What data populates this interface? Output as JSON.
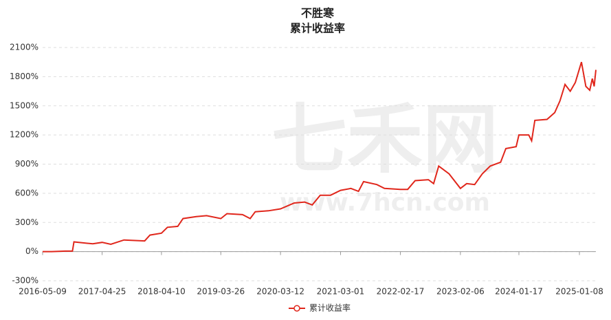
{
  "chart_data": {
    "type": "line",
    "title": "不胜寒",
    "subtitle": "累计收益率",
    "watermark": "七禾网",
    "watermark_url": "www.7hcn.com",
    "x": [
      "2016-05-09",
      "2016-07-01",
      "2016-09-20",
      "2016-11-01",
      "2016-11-10",
      "2017-03-01",
      "2017-04-25",
      "2017-06-15",
      "2017-09-01",
      "2018-01-01",
      "2018-02-01",
      "2018-04-10",
      "2018-05-15",
      "2018-07-15",
      "2018-08-15",
      "2018-11-01",
      "2019-01-01",
      "2019-03-26",
      "2019-05-01",
      "2019-08-01",
      "2019-09-15",
      "2019-10-15",
      "2020-01-01",
      "2020-03-12",
      "2020-06-01",
      "2020-08-01",
      "2020-09-15",
      "2020-11-01",
      "2021-01-01",
      "2021-03-01",
      "2021-05-01",
      "2021-06-15",
      "2021-07-15",
      "2021-10-01",
      "2021-11-15",
      "2022-02-17",
      "2022-04-01",
      "2022-05-15",
      "2022-08-01",
      "2022-09-01",
      "2022-10-01",
      "2022-12-01",
      "2023-02-06",
      "2023-03-15",
      "2023-05-01",
      "2023-06-15",
      "2023-08-01",
      "2023-10-01",
      "2023-11-01",
      "2024-01-01",
      "2024-01-17",
      "2024-03-15",
      "2024-04-01",
      "2024-04-20",
      "2024-07-01",
      "2024-08-15",
      "2024-09-15",
      "2024-10-15",
      "2024-11-15",
      "2024-12-15",
      "2025-01-20",
      "2025-02-15",
      "2025-03-10",
      "2025-03-25",
      "2025-04-05",
      "2025-04-15"
    ],
    "series": [
      {
        "name": "累计收益率",
        "color": "#e0261b",
        "values": [
          0,
          0,
          5,
          5,
          100,
          80,
          95,
          75,
          120,
          110,
          170,
          190,
          250,
          260,
          340,
          360,
          370,
          340,
          390,
          380,
          340,
          410,
          420,
          440,
          500,
          510,
          480,
          580,
          580,
          630,
          650,
          620,
          720,
          690,
          650,
          640,
          640,
          730,
          740,
          700,
          880,
          800,
          650,
          700,
          690,
          800,
          880,
          920,
          1060,
          1080,
          1200,
          1200,
          1140,
          1350,
          1360,
          1430,
          1550,
          1720,
          1650,
          1740,
          1950,
          1700,
          1660,
          1780,
          1700,
          1870
        ]
      }
    ],
    "xlim": [
      "2016-05-09",
      "2025-04-15"
    ],
    "xticks": [
      "2016-05-09",
      "2017-04-25",
      "2018-04-10",
      "2019-03-26",
      "2020-03-12",
      "2021-03-01",
      "2022-02-17",
      "2023-02-06",
      "2024-01-17",
      "2025-01-08"
    ],
    "ylim": [
      -300,
      2100
    ],
    "yticks": [
      {
        "value": -300,
        "label": "-300%"
      },
      {
        "value": 0,
        "label": "0%"
      },
      {
        "value": 300,
        "label": "300%"
      },
      {
        "value": 600,
        "label": "600%"
      },
      {
        "value": 900,
        "label": "900%"
      },
      {
        "value": 1200,
        "label": "1200%"
      },
      {
        "value": 1500,
        "label": "1500%"
      },
      {
        "value": 1800,
        "label": "1800%"
      },
      {
        "value": 2100,
        "label": "2100%"
      }
    ],
    "grid": true,
    "legend": "bottom"
  }
}
